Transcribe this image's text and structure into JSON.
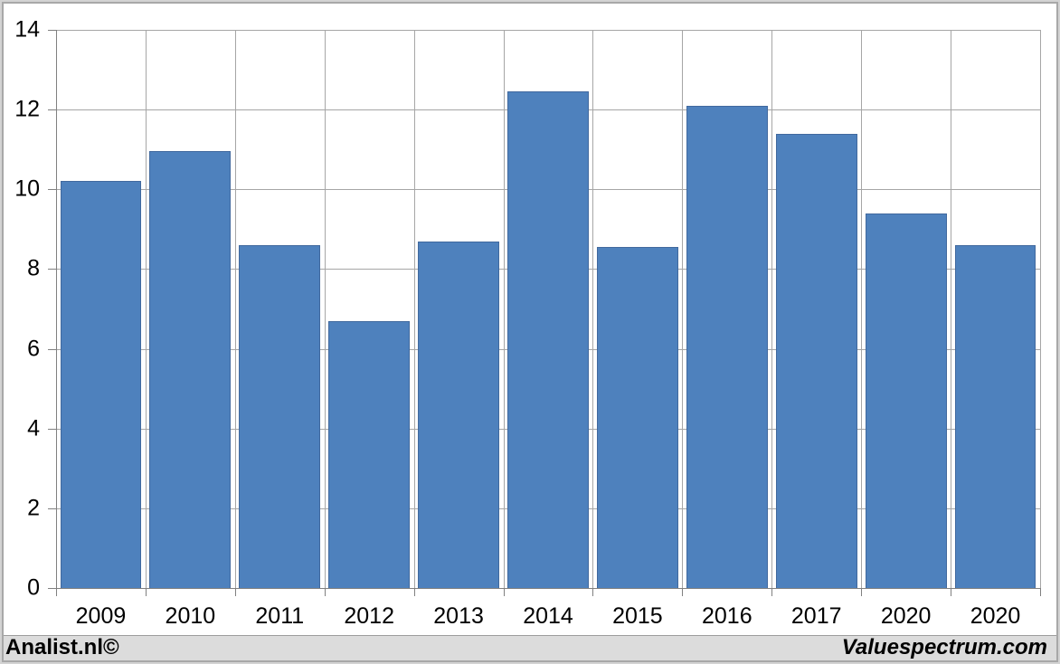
{
  "chart_data": {
    "type": "bar",
    "title": "",
    "categories": [
      "2009",
      "2010",
      "2011",
      "2012",
      "2013",
      "2014",
      "2015",
      "2016",
      "2017",
      "2020",
      "2020"
    ],
    "values": [
      10.2,
      10.95,
      8.6,
      6.7,
      8.7,
      12.45,
      8.55,
      12.1,
      11.4,
      9.4,
      8.6
    ],
    "xlabel": "",
    "ylabel": "",
    "ylim": [
      0,
      14
    ],
    "yticks": [
      0,
      2,
      4,
      6,
      8,
      10,
      12,
      14
    ],
    "ytick_labels": [
      "0",
      "2",
      "4",
      "6",
      "8",
      "10",
      "12",
      "14"
    ],
    "grid": true,
    "vertical_gridlines": true,
    "legend": false
  },
  "colors": {
    "bar_fill": "#4e81bd",
    "bar_border": "#41699e",
    "gridline": "#a6a6a6",
    "axis_line": "#808080",
    "tick_label": "#000000",
    "plot_bg": "#ffffff",
    "frame_outer": "#d3d3d3",
    "frame_line": "#a8a8a8",
    "footer_bg": "#dcdcdc",
    "footer_text": "#000000"
  },
  "footer": {
    "left_text": "Analist.nl©",
    "right_text": "Valuespectrum.com"
  }
}
